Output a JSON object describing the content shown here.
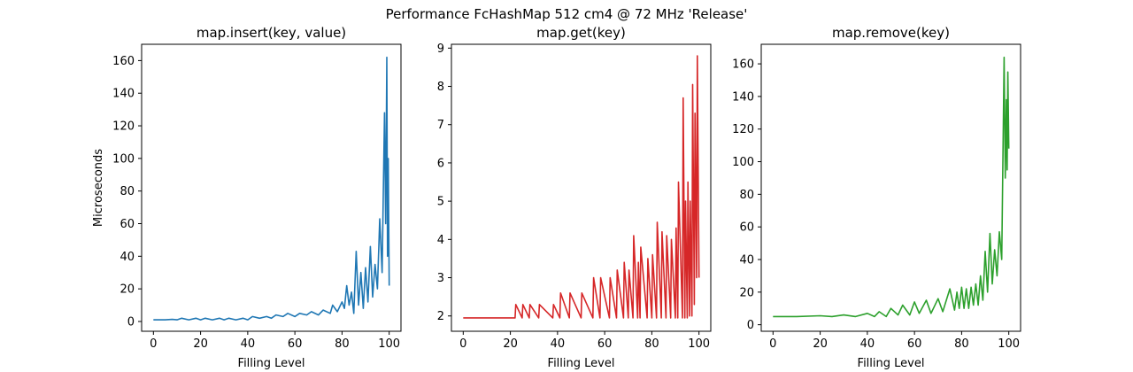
{
  "figure": {
    "suptitle": "Performance FcHashMap 512 cm4 @ 72 MHz 'Release'"
  },
  "chart_data": [
    {
      "type": "line",
      "title": "map.insert(key, value)",
      "xlabel": "Filling Level",
      "ylabel": "Microseconds",
      "xlim": [
        -5,
        105
      ],
      "ylim": [
        -6,
        170
      ],
      "xticks": [
        0,
        20,
        40,
        60,
        80,
        100
      ],
      "yticks": [
        0,
        20,
        40,
        60,
        80,
        100,
        120,
        140,
        160
      ],
      "grid": false,
      "series": [
        {
          "color": "#1f77b4",
          "x": [
            0,
            5,
            8,
            10,
            12,
            15,
            18,
            20,
            22,
            25,
            28,
            30,
            32,
            35,
            38,
            40,
            42,
            45,
            48,
            50,
            52,
            55,
            57,
            60,
            62,
            65,
            67,
            70,
            72,
            75,
            76,
            78,
            80,
            81,
            82,
            83,
            84,
            85,
            86,
            87,
            88,
            89,
            90,
            91,
            92,
            93,
            94,
            95,
            96,
            97,
            98,
            98.5,
            99,
            99.3,
            99.6,
            100
          ],
          "y": [
            1,
            1,
            1.3,
            1,
            2,
            1,
            2,
            1,
            2,
            1,
            2,
            1,
            2,
            1,
            2,
            1,
            3,
            2,
            3,
            2,
            4,
            3,
            5,
            3,
            5,
            4,
            6,
            4,
            7,
            5,
            10,
            6,
            12,
            8,
            22,
            10,
            18,
            5,
            43,
            10,
            30,
            8,
            33,
            12,
            46,
            15,
            35,
            20,
            63,
            30,
            128,
            60,
            162,
            40,
            100,
            22
          ]
        }
      ]
    },
    {
      "type": "line",
      "title": "map.get(key)",
      "xlabel": "Filling Level",
      "ylabel": "",
      "xlim": [
        -5,
        105
      ],
      "ylim": [
        1.6,
        9.1
      ],
      "xticks": [
        0,
        20,
        40,
        60,
        80,
        100
      ],
      "yticks": [
        2,
        3,
        4,
        5,
        6,
        7,
        8,
        9
      ],
      "grid": false,
      "series": [
        {
          "color": "#d62728",
          "x": [
            0,
            22,
            22.3,
            25,
            25.3,
            28,
            28.3,
            32,
            32.3,
            38,
            38.3,
            41,
            41.3,
            45,
            45.3,
            50,
            50.3,
            55,
            55.3,
            58,
            58.3,
            62,
            62.3,
            65,
            65.3,
            68,
            68.3,
            70,
            70.3,
            72,
            72.3,
            74,
            74.3,
            75,
            75.3,
            78,
            78.3,
            80,
            80.3,
            82,
            82.3,
            84,
            84.3,
            86,
            86.3,
            88,
            88.3,
            90,
            90.3,
            91,
            91.3,
            93,
            93.3,
            94,
            94.3,
            95,
            95.3,
            96,
            96.3,
            97,
            97.3,
            98,
            98.3,
            99,
            99.3,
            100
          ],
          "y": [
            1.95,
            1.95,
            2.3,
            1.95,
            2.3,
            1.95,
            2.3,
            1.95,
            2.3,
            1.95,
            2.3,
            1.95,
            2.6,
            1.95,
            2.6,
            1.95,
            2.6,
            1.95,
            3.0,
            1.95,
            3.0,
            1.95,
            3.0,
            1.95,
            3.2,
            1.95,
            3.4,
            1.95,
            3.2,
            1.95,
            4.1,
            1.95,
            3.4,
            1.95,
            3.8,
            1.95,
            3.5,
            1.95,
            3.6,
            1.95,
            4.45,
            1.95,
            4.2,
            1.95,
            4.1,
            1.95,
            4.0,
            1.95,
            4.3,
            1.95,
            5.5,
            1.95,
            7.7,
            1.95,
            5.0,
            1.95,
            5.5,
            2.0,
            5.0,
            2.0,
            8.05,
            2.3,
            7.3,
            3.0,
            8.8,
            3.0
          ]
        }
      ]
    },
    {
      "type": "line",
      "title": "map.remove(key)",
      "xlabel": "Filling Level",
      "ylabel": "",
      "xlim": [
        -5,
        105
      ],
      "ylim": [
        -4,
        172
      ],
      "xticks": [
        0,
        20,
        40,
        60,
        80,
        100
      ],
      "yticks": [
        0,
        20,
        40,
        60,
        80,
        100,
        120,
        140,
        160
      ],
      "grid": false,
      "series": [
        {
          "color": "#2ca02c",
          "x": [
            0,
            10,
            20,
            25,
            30,
            35,
            40,
            43,
            45,
            48,
            50,
            53,
            55,
            58,
            60,
            62,
            65,
            67,
            70,
            72,
            75,
            77,
            78,
            79,
            80,
            81,
            82,
            83,
            84,
            85,
            86,
            87,
            88,
            89,
            90,
            91,
            92,
            93,
            94,
            95,
            96,
            97,
            98,
            98.5,
            99,
            99.3,
            99.6,
            100
          ],
          "y": [
            5,
            5,
            5.5,
            5,
            6,
            5,
            7,
            5,
            8,
            5,
            10,
            6,
            12,
            6,
            14,
            7,
            15,
            7,
            16,
            8,
            22,
            9,
            20,
            10,
            23,
            10,
            22,
            10,
            23,
            12,
            25,
            12,
            30,
            15,
            45,
            20,
            56,
            25,
            46,
            30,
            57,
            40,
            164,
            90,
            138,
            95,
            155,
            108
          ]
        }
      ]
    }
  ]
}
